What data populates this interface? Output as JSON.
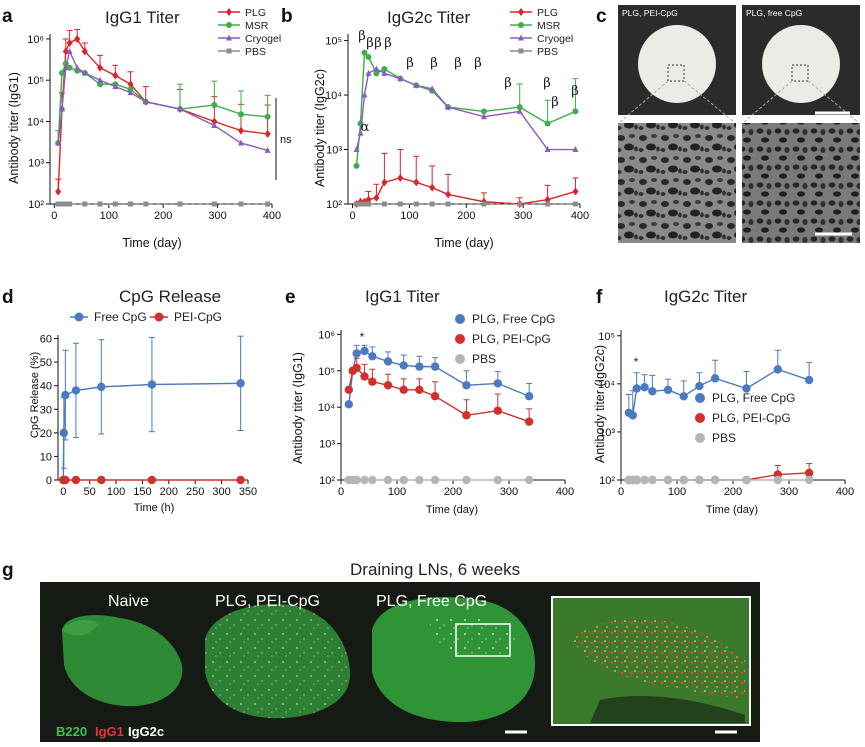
{
  "colors": {
    "plg": "#d9262a",
    "msr": "#3fae4a",
    "cryogel": "#8b5bc4",
    "pbs": "#8c8c8c",
    "free": "#4a7bc1",
    "pei": "#d0312d",
    "gray_pt": "#b5b5b5"
  },
  "panels": {
    "a": {
      "letter": "a",
      "title": "IgG1 Titer",
      "xlabel": "Time (day)",
      "ylabel": "Antibody titer (IgG1)",
      "ns": "ns"
    },
    "b": {
      "letter": "b",
      "title": "IgG2c Titer",
      "xlabel": "Time (day)",
      "ylabel": "Antibody titer (IgG2c)"
    },
    "c": {
      "letter": "c",
      "caption_left": "PLG, PEI-CpG",
      "caption_right": "PLG, free CpG"
    },
    "d": {
      "letter": "d",
      "title": "CpG Release",
      "xlabel": "Time (h)",
      "ylabel": "CpG Release (%)"
    },
    "e": {
      "letter": "e",
      "title": "IgG1 Titer",
      "xlabel": "Time (day)",
      "ylabel": "Antibody titer (IgG1)"
    },
    "f": {
      "letter": "f",
      "title": "IgG2c Titer",
      "xlabel": "Time (day)",
      "ylabel": "Antibody titer (IgG2c)"
    },
    "g": {
      "letter": "g",
      "title": "Draining LNs, 6 weeks",
      "labels": [
        "Naive",
        "PLG, PEI-CpG",
        "PLG, Free CpG"
      ],
      "stain_b220": "B220",
      "stain_igg1": "IgG1",
      "stain_igg2c": "IgG2c"
    }
  },
  "chart_data": [
    {
      "id": "a",
      "type": "line",
      "title": "IgG1 Titer",
      "xlabel": "Time (day)",
      "ylabel": "Antibody titer (IgG1)",
      "yscale": "log",
      "xlim": [
        0,
        400
      ],
      "ylim": [
        100,
        1000000
      ],
      "xticks": [
        "0",
        "100",
        "200",
        "300",
        "400"
      ],
      "yticks": [
        "10²",
        "10³",
        "10⁴",
        "10⁵",
        "10⁶"
      ],
      "legend_position": "top-right",
      "annotation": "ns",
      "series": [
        {
          "name": "PLG",
          "color": "#d9262a",
          "marker": "diamond",
          "x": [
            7,
            14,
            21,
            28,
            42,
            56,
            84,
            112,
            140,
            168,
            231,
            294,
            343,
            392
          ],
          "y": [
            200,
            20000,
            500000,
            800000,
            1000000,
            500000,
            200000,
            130000,
            80000,
            30000,
            20000,
            10000,
            6000,
            5000
          ],
          "err": [
            200,
            30000,
            500000,
            800000,
            700000,
            300000,
            200000,
            100000,
            80000,
            40000,
            40000,
            30000,
            20000,
            20000
          ]
        },
        {
          "name": "MSR",
          "color": "#3fae4a",
          "marker": "circle",
          "x": [
            7,
            14,
            21,
            28,
            42,
            56,
            84,
            112,
            140,
            168,
            231,
            294,
            343,
            392
          ],
          "y": [
            3000,
            150000,
            250000,
            200000,
            170000,
            150000,
            80000,
            80000,
            60000,
            30000,
            20000,
            25000,
            15000,
            13000
          ],
          "err": [
            3000,
            0,
            0,
            0,
            0,
            0,
            0,
            0,
            0,
            0,
            60000,
            70000,
            40000,
            30000
          ]
        },
        {
          "name": "Cryogel",
          "color": "#8b5bc4",
          "marker": "triangle",
          "x": [
            7,
            14,
            21,
            28,
            42,
            56,
            84,
            112,
            140,
            168,
            231,
            294,
            343,
            392
          ],
          "y": [
            3000,
            20000,
            200000,
            500000,
            200000,
            150000,
            100000,
            70000,
            50000,
            30000,
            20000,
            8000,
            3000,
            2000
          ],
          "err": [
            0,
            0,
            0,
            0,
            0,
            0,
            0,
            0,
            0,
            0,
            0,
            0,
            0,
            0
          ]
        },
        {
          "name": "PBS",
          "color": "#8c8c8c",
          "marker": "square",
          "x": [
            7,
            14,
            21,
            28,
            56,
            84,
            112,
            140,
            168,
            231,
            294,
            343,
            392
          ],
          "y": [
            100,
            100,
            100,
            100,
            100,
            100,
            100,
            100,
            100,
            100,
            100,
            100,
            100
          ],
          "err": [
            0,
            0,
            0,
            0,
            0,
            0,
            0,
            0,
            0,
            0,
            0,
            0,
            0
          ]
        }
      ]
    },
    {
      "id": "b",
      "type": "line",
      "title": "IgG2c Titer",
      "xlabel": "Time (day)",
      "ylabel": "Antibody titer (IgG2c)",
      "yscale": "log",
      "xlim": [
        0,
        400
      ],
      "ylim": [
        100,
        100000
      ],
      "xticks": [
        "0",
        "100",
        "200",
        "300",
        "400"
      ],
      "yticks": [
        "10²",
        "10³",
        "10⁴",
        "10⁵"
      ],
      "legend_position": "top-right",
      "annotations": [
        "α",
        "β",
        "β",
        "β",
        "β",
        "β",
        "β",
        "β",
        "β",
        "β",
        "β",
        "β",
        "β",
        "β"
      ],
      "series": [
        {
          "name": "PLG",
          "color": "#d9262a",
          "marker": "diamond",
          "x": [
            7,
            14,
            21,
            28,
            42,
            56,
            84,
            112,
            140,
            168,
            231,
            294,
            343,
            392
          ],
          "y": [
            100,
            110,
            110,
            120,
            130,
            250,
            300,
            250,
            200,
            150,
            110,
            100,
            120,
            170
          ],
          "err": [
            0,
            0,
            0,
            50,
            100,
            600,
            700,
            500,
            300,
            200,
            50,
            30,
            100,
            130
          ]
        },
        {
          "name": "MSR",
          "color": "#3fae4a",
          "marker": "circle",
          "x": [
            7,
            14,
            21,
            28,
            42,
            56,
            84,
            112,
            140,
            168,
            231,
            294,
            343,
            392
          ],
          "y": [
            500,
            3000,
            60000,
            50000,
            25000,
            30000,
            20000,
            15000,
            12000,
            6000,
            5000,
            6000,
            3000,
            5000
          ],
          "err": [
            0,
            0,
            0,
            0,
            0,
            0,
            0,
            0,
            0,
            0,
            0,
            10000,
            5000,
            15000
          ]
        },
        {
          "name": "Cryogel",
          "color": "#8b5bc4",
          "marker": "triangle",
          "x": [
            7,
            14,
            21,
            28,
            42,
            56,
            84,
            112,
            140,
            168,
            231,
            294,
            343,
            392
          ],
          "y": [
            1000,
            2000,
            10000,
            25000,
            30000,
            25000,
            20000,
            15000,
            13000,
            6000,
            4000,
            5000,
            1000,
            1000
          ],
          "err": [
            0,
            0,
            0,
            0,
            0,
            0,
            0,
            0,
            0,
            0,
            0,
            0,
            0,
            0
          ]
        },
        {
          "name": "PBS",
          "color": "#8c8c8c",
          "marker": "square",
          "x": [
            7,
            14,
            21,
            28,
            56,
            84,
            112,
            140,
            168,
            231,
            294,
            343,
            392
          ],
          "y": [
            100,
            100,
            100,
            100,
            100,
            100,
            100,
            100,
            100,
            100,
            100,
            100,
            100
          ],
          "err": [
            0,
            0,
            0,
            0,
            0,
            0,
            0,
            0,
            0,
            0,
            0,
            0,
            0
          ]
        }
      ]
    },
    {
      "id": "d",
      "type": "line",
      "title": "CpG Release",
      "xlabel": "Time (h)",
      "ylabel": "CpG Release (%)",
      "yscale": "linear",
      "xlim": [
        -10,
        350
      ],
      "ylim": [
        0,
        60
      ],
      "xticks": [
        "0",
        "50",
        "100",
        "150",
        "200",
        "250",
        "300",
        "350"
      ],
      "yticks": [
        "0",
        "10",
        "20",
        "30",
        "40",
        "50",
        "60"
      ],
      "legend_position": "top",
      "series": [
        {
          "name": "Free CpG",
          "color": "#4a7bc1",
          "x": [
            0,
            1,
            4,
            24,
            72,
            168,
            336
          ],
          "y": [
            0,
            20,
            36,
            38,
            39.5,
            40.5,
            41
          ],
          "err": [
            0,
            15,
            19,
            20,
            20,
            20,
            20
          ]
        },
        {
          "name": "PEI-CpG",
          "color": "#d0312d",
          "x": [
            0,
            1,
            4,
            24,
            72,
            168,
            336
          ],
          "y": [
            0,
            0,
            0,
            0,
            0,
            0,
            0
          ],
          "err": [
            0,
            0,
            0,
            0,
            0,
            0,
            0
          ]
        }
      ]
    },
    {
      "id": "e",
      "type": "line",
      "title": "IgG1 Titer",
      "xlabel": "Time (day)",
      "ylabel": "Antibody titer (IgG1)",
      "yscale": "log",
      "xlim": [
        0,
        400
      ],
      "ylim": [
        100,
        1000000
      ],
      "xticks": [
        "0",
        "100",
        "200",
        "300",
        "400"
      ],
      "yticks": [
        "10²",
        "10³",
        "10⁴",
        "10⁵",
        "10⁶"
      ],
      "legend_position": "top-right",
      "annotation": "*",
      "series": [
        {
          "name": "PLG, Free CpG",
          "color": "#4a7bc1",
          "x": [
            14,
            21,
            28,
            42,
            56,
            84,
            112,
            140,
            168,
            224,
            280,
            336
          ],
          "y": [
            12000,
            100000,
            300000,
            350000,
            250000,
            180000,
            140000,
            130000,
            130000,
            40000,
            45000,
            20000
          ],
          "err": [
            0,
            0,
            200000,
            150000,
            200000,
            150000,
            130000,
            120000,
            100000,
            60000,
            50000,
            25000
          ]
        },
        {
          "name": "PLG, PEI-CpG",
          "color": "#d0312d",
          "x": [
            14,
            21,
            28,
            42,
            56,
            84,
            112,
            140,
            168,
            224,
            280,
            336
          ],
          "y": [
            30000,
            100000,
            120000,
            70000,
            50000,
            40000,
            30000,
            30000,
            20000,
            6000,
            8000,
            4000
          ],
          "err": [
            0,
            0,
            100000,
            80000,
            60000,
            40000,
            30000,
            30000,
            30000,
            10000,
            15000,
            5000
          ]
        },
        {
          "name": "PBS",
          "color": "#b5b5b5",
          "x": [
            14,
            21,
            28,
            42,
            56,
            84,
            112,
            140,
            168,
            224,
            280,
            336
          ],
          "y": [
            100,
            100,
            100,
            100,
            100,
            100,
            100,
            100,
            100,
            100,
            100,
            100
          ],
          "err": [
            0,
            0,
            0,
            0,
            0,
            0,
            0,
            0,
            0,
            0,
            0,
            0
          ]
        }
      ]
    },
    {
      "id": "f",
      "type": "line",
      "title": "IgG2c Titer",
      "xlabel": "Time (day)",
      "ylabel": "Antibody titer (IgG2c)",
      "yscale": "log",
      "xlim": [
        0,
        400
      ],
      "ylim": [
        100,
        100000
      ],
      "xticks": [
        "0",
        "100",
        "200",
        "300",
        "400"
      ],
      "yticks": [
        "10²",
        "10³",
        "10⁴",
        "10⁵"
      ],
      "legend_position": "right",
      "annotation": "*",
      "series": [
        {
          "name": "PLG, Free CpG",
          "color": "#4a7bc1",
          "x": [
            14,
            21,
            28,
            42,
            56,
            84,
            112,
            140,
            168,
            224,
            280,
            336
          ],
          "y": [
            2500,
            2200,
            8000,
            8500,
            7000,
            7500,
            5500,
            9000,
            13000,
            8000,
            20000,
            12000
          ],
          "err": [
            3500,
            5000,
            9000,
            7000,
            8000,
            5000,
            6000,
            8000,
            18000,
            10000,
            30000,
            16000
          ]
        },
        {
          "name": "PLG, PEI-CpG",
          "color": "#d0312d",
          "x": [
            14,
            21,
            28,
            42,
            56,
            84,
            112,
            140,
            168,
            224,
            280,
            336
          ],
          "y": [
            100,
            100,
            100,
            100,
            100,
            100,
            100,
            100,
            100,
            100,
            130,
            140
          ],
          "err": [
            0,
            0,
            0,
            0,
            0,
            0,
            0,
            0,
            0,
            0,
            70,
            80
          ]
        },
        {
          "name": "PBS",
          "color": "#b5b5b5",
          "x": [
            14,
            21,
            28,
            42,
            56,
            84,
            112,
            140,
            168,
            224,
            280,
            336
          ],
          "y": [
            100,
            100,
            100,
            100,
            100,
            100,
            100,
            100,
            100,
            100,
            100,
            100
          ],
          "err": [
            0,
            0,
            0,
            0,
            0,
            0,
            0,
            0,
            0,
            0,
            0,
            0
          ]
        }
      ]
    }
  ]
}
